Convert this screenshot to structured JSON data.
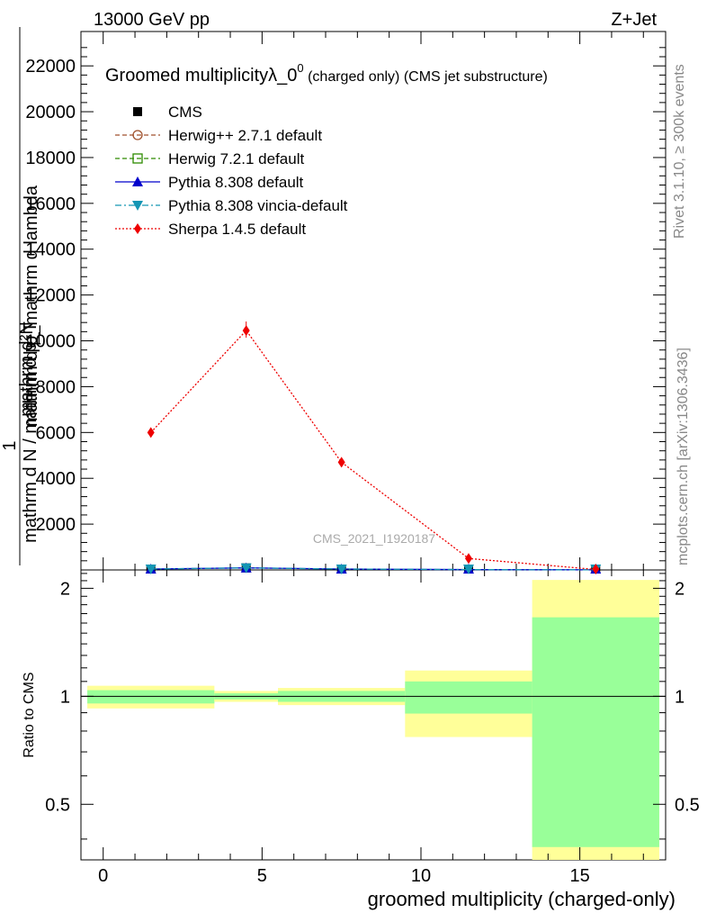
{
  "header": {
    "left": "13000 GeV pp",
    "right": "Z+Jet"
  },
  "plot_title": {
    "main": "Groomed multiplicityλ_0",
    "superscript": "0",
    "suffix": " (charged only) (CMS jet substructure)"
  },
  "y_label": {
    "one": "1",
    "numerator_top": "mathrm d²N",
    "numerator_bottom": "mathrm d p_mathrm d lambda",
    "denominator": "mathrm d N / mathrm d p_T"
  },
  "ratio_ylabel": "Ratio to CMS",
  "x_label": "groomed multiplicity (charged-only)",
  "watermark": "CMS_2021_I1920187",
  "side_top": "Rivet 3.1.10, ≥ 300k events",
  "side_bottom": "mcplots.cern.ch [arXiv:1306.3436]",
  "legend": [
    {
      "label": "CMS",
      "color": "#000000",
      "marker": "square-filled",
      "line": "none"
    },
    {
      "label": "Herwig++ 2.7.1 default",
      "color": "#a0522d",
      "marker": "circle-open",
      "line": "dashed"
    },
    {
      "label": "Herwig 7.2.1 default",
      "color": "#2e8b00",
      "marker": "square-open",
      "line": "dashed"
    },
    {
      "label": "Pythia 8.308 default",
      "color": "#0000cc",
      "marker": "triangle-up",
      "line": "solid"
    },
    {
      "label": "Pythia 8.308 vincia-default",
      "color": "#1496b4",
      "marker": "triangle-down",
      "line": "dashdot"
    },
    {
      "label": "Sherpa 1.4.5 default",
      "color": "#ee0000",
      "marker": "diamond",
      "line": "dotted"
    }
  ],
  "chart_data": [
    {
      "type": "line",
      "panel": "main",
      "xlim": [
        -0.7,
        17.7
      ],
      "ylim": [
        0,
        23500
      ],
      "y_ticks": [
        2000,
        4000,
        6000,
        8000,
        10000,
        12000,
        14000,
        16000,
        18000,
        20000,
        22000
      ],
      "y_tick_labels": [
        "2000",
        "4000",
        "6000",
        "8000",
        "10000",
        "12000",
        "14000",
        "16000",
        "18000",
        "20000",
        "22000"
      ],
      "series": [
        {
          "name": "CMS",
          "x": [
            1.5,
            4.5,
            7.5,
            11.5,
            15.5
          ],
          "y": [
            40,
            90,
            40,
            15,
            5
          ]
        },
        {
          "name": "Pythia 8.308 default",
          "x": [
            1.5,
            4.5,
            7.5,
            11.5,
            15.5
          ],
          "y": [
            40,
            90,
            40,
            15,
            5
          ]
        },
        {
          "name": "Pythia 8.308 vincia-default",
          "x": [
            1.5,
            4.5,
            7.5,
            11.5,
            15.5
          ],
          "y": [
            40,
            90,
            40,
            15,
            5
          ]
        },
        {
          "name": "Sherpa 1.4.5 default",
          "x": [
            1.5,
            4.5,
            7.5,
            11.5,
            15.5
          ],
          "y": [
            6000,
            10450,
            4700,
            500,
            20
          ]
        }
      ]
    },
    {
      "type": "area",
      "panel": "ratio",
      "xlim": [
        -0.7,
        17.7
      ],
      "ylim": [
        0.35,
        2.25
      ],
      "y_ticks": [
        0.5,
        1,
        2
      ],
      "y_tick_labels": [
        "0.5",
        "1",
        "2"
      ],
      "x_ticks": [
        0,
        5,
        10,
        15
      ],
      "x_tick_labels": [
        "0",
        "5",
        "10",
        "15"
      ],
      "reference": 1,
      "bands": [
        {
          "x_range": [
            -0.5,
            3.5
          ],
          "yellow": [
            0.925,
            1.07
          ],
          "green": [
            0.955,
            1.04
          ]
        },
        {
          "x_range": [
            3.5,
            5.5
          ],
          "yellow": [
            0.965,
            1.035
          ],
          "green": [
            0.98,
            1.02
          ]
        },
        {
          "x_range": [
            5.5,
            9.5
          ],
          "yellow": [
            0.945,
            1.055
          ],
          "green": [
            0.965,
            1.035
          ]
        },
        {
          "x_range": [
            9.5,
            13.5
          ],
          "yellow": [
            0.77,
            1.18
          ],
          "green": [
            0.895,
            1.1
          ]
        },
        {
          "x_range": [
            13.5,
            17.5
          ],
          "yellow": [
            0.35,
            2.11
          ],
          "green": [
            0.38,
            1.66
          ]
        }
      ]
    }
  ]
}
